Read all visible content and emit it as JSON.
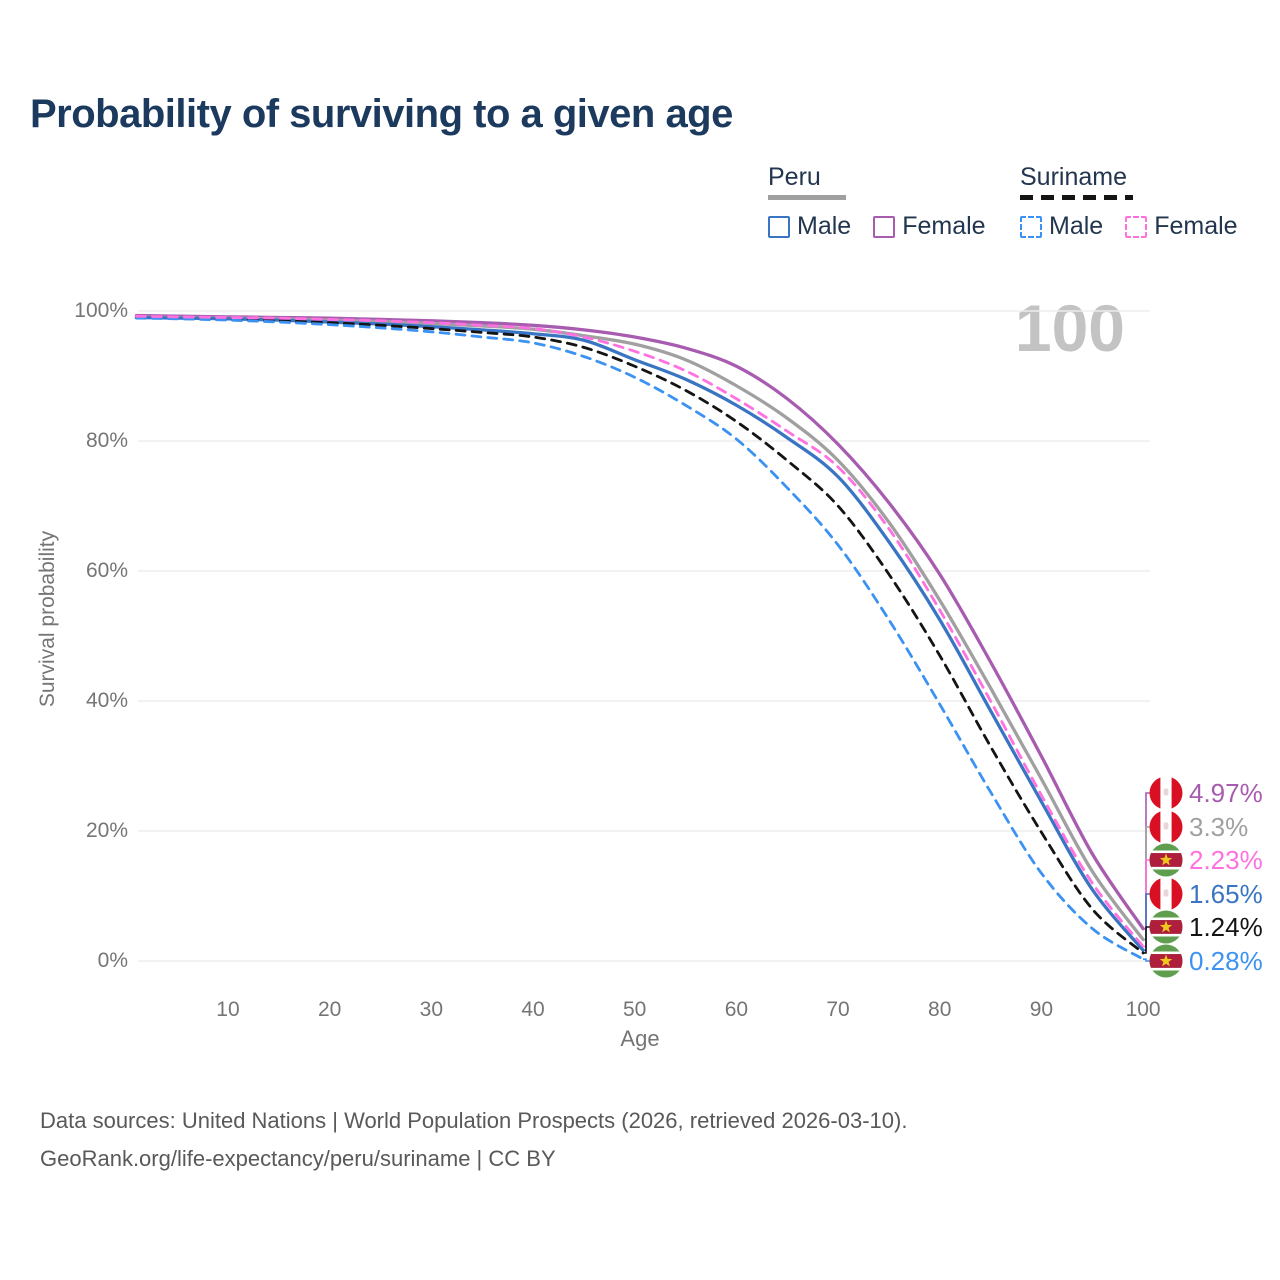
{
  "title": "Probability of surviving to a given age",
  "watermark": "100",
  "colors": {
    "title": "#1c3a5e",
    "axis_text": "#757575",
    "grid": "#ededed",
    "watermark": "#c3c3c3",
    "footer": "#595959",
    "legend_text": "#22364f"
  },
  "legend": {
    "groups": [
      {
        "label": "Peru",
        "line_color": "#a0a0a0",
        "line_dashed": false,
        "items": [
          {
            "label": "Male",
            "color": "#3a75c4",
            "dashed": false
          },
          {
            "label": "Female",
            "color": "#a85cb0",
            "dashed": false
          }
        ]
      },
      {
        "label": "Suriname",
        "line_color": "#141414",
        "line_dashed": true,
        "items": [
          {
            "label": "Male",
            "color": "#3c92f2",
            "dashed": true
          },
          {
            "label": "Female",
            "color": "#ff70e0",
            "dashed": true
          }
        ]
      }
    ]
  },
  "chart_data": {
    "type": "line",
    "title": "Probability of surviving to a given age",
    "xlabel": "Age",
    "ylabel": "Survival probability",
    "xlim": [
      1,
      100
    ],
    "ylim": [
      0,
      100
    ],
    "grid": "horizontal",
    "x_ticks": [
      10,
      20,
      30,
      40,
      50,
      60,
      70,
      80,
      90,
      100
    ],
    "y_ticks": [
      0,
      20,
      40,
      60,
      80,
      100
    ],
    "y_tick_suffix": "%",
    "x": [
      1,
      5,
      10,
      15,
      20,
      25,
      30,
      35,
      40,
      45,
      50,
      55,
      60,
      65,
      70,
      75,
      80,
      85,
      90,
      95,
      100
    ],
    "series": [
      {
        "key": "peru-female",
        "name": "Peru Female",
        "country": "Peru",
        "color": "#a85cb0",
        "dashed": false,
        "end_label": "4.97%",
        "values": [
          99.3,
          99.2,
          99.1,
          99.0,
          98.9,
          98.7,
          98.5,
          98.2,
          97.8,
          97.1,
          96.0,
          94.3,
          91.5,
          86.5,
          79.5,
          70.5,
          59.5,
          46.0,
          31.5,
          16.5,
          4.97
        ]
      },
      {
        "key": "peru-total",
        "name": "Peru (both sexes)",
        "country": "Peru",
        "color": "#a0a0a0",
        "dashed": false,
        "end_label": "3.3%",
        "values": [
          99.1,
          99.0,
          98.9,
          98.8,
          98.6,
          98.4,
          98.1,
          97.7,
          97.2,
          96.2,
          94.9,
          92.5,
          88.5,
          83.5,
          77.0,
          67.5,
          55.5,
          42.0,
          28.0,
          13.8,
          3.3
        ]
      },
      {
        "key": "suriname-female",
        "name": "Suriname Female",
        "country": "Suriname",
        "color": "#ff70e0",
        "dashed": true,
        "end_label": "2.23%",
        "values": [
          99.2,
          99.1,
          99.0,
          98.9,
          98.7,
          98.5,
          98.2,
          97.8,
          97.3,
          96.0,
          93.8,
          90.8,
          86.5,
          81.5,
          76.0,
          66.5,
          54.0,
          40.0,
          25.5,
          12.0,
          2.23
        ]
      },
      {
        "key": "peru-male",
        "name": "Peru Male",
        "country": "Peru",
        "color": "#3a75c4",
        "dashed": false,
        "end_label": "1.65%",
        "values": [
          99.0,
          98.9,
          98.8,
          98.6,
          98.3,
          98.0,
          97.6,
          97.1,
          96.5,
          95.5,
          92.5,
          89.5,
          85.5,
          80.5,
          74.5,
          64.5,
          52.5,
          38.5,
          24.5,
          11.0,
          1.65
        ]
      },
      {
        "key": "suriname-total",
        "name": "Suriname (both sexes)",
        "country": "Suriname",
        "color": "#141414",
        "dashed": true,
        "end_label": "1.24%",
        "values": [
          99.0,
          98.9,
          98.7,
          98.5,
          98.2,
          97.8,
          97.3,
          96.7,
          96.0,
          94.4,
          91.5,
          87.8,
          83.0,
          77.0,
          70.0,
          59.5,
          47.0,
          33.0,
          19.8,
          8.0,
          1.24
        ]
      },
      {
        "key": "suriname-male",
        "name": "Suriname Male",
        "country": "Suriname",
        "color": "#3c92f2",
        "dashed": true,
        "end_label": "0.28%",
        "values": [
          98.9,
          98.8,
          98.6,
          98.3,
          97.9,
          97.4,
          96.8,
          96.0,
          95.1,
          93.0,
          89.8,
          85.5,
          80.3,
          72.8,
          64.0,
          52.5,
          39.5,
          26.0,
          13.5,
          5.0,
          0.28
        ]
      }
    ]
  },
  "flags": {
    "peru": {
      "red": "#D91023",
      "white": "#ffffff"
    },
    "suriname": {
      "green": "#5F9E4F",
      "red": "#AF1E3C",
      "white": "#ffffff",
      "star": "#EFC81E"
    }
  },
  "footer": {
    "line1": "Data sources: United Nations | World Population Prospects (2026, retrieved 2026-03-10).",
    "line2": "GeoRank.org/life-expectancy/peru/suriname | CC BY"
  }
}
